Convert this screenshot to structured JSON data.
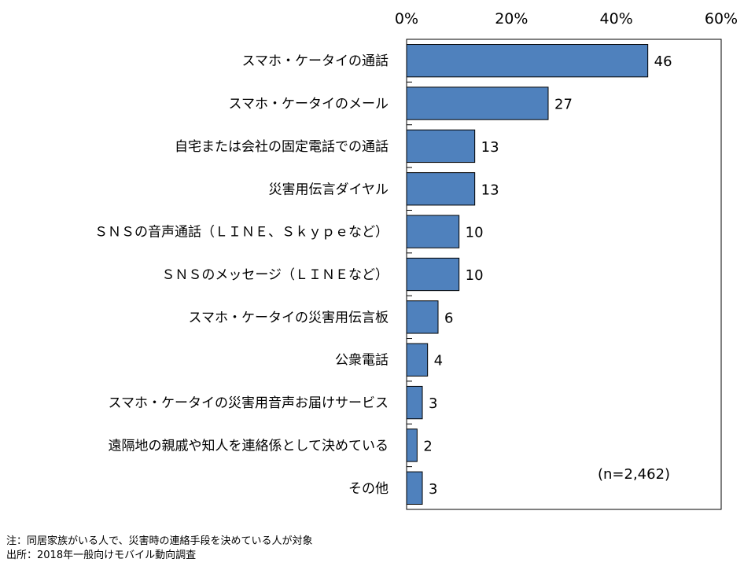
{
  "chart_data": {
    "type": "bar",
    "orientation": "horizontal",
    "categories": [
      "スマホ・ケータイの通話",
      "スマホ・ケータイのメール",
      "自宅または会社の固定電話での通話",
      "災害用伝言ダイヤル",
      "ＳＮＳの音声通話（ＬＩＮＥ、Ｓｋｙｐｅなど）",
      "ＳＮＳのメッセージ（ＬＩＮＥなど）",
      "スマホ・ケータイの災害用伝言板",
      "公衆電話",
      "スマホ・ケータイの災害用音声お届けサービス",
      "遠隔地の親戚や知人を連絡係として決めている",
      "その他"
    ],
    "values": [
      46,
      27,
      13,
      13,
      10,
      10,
      6,
      4,
      3,
      2,
      3
    ],
    "data_labels": [
      "46",
      "27",
      "13",
      "13",
      "10",
      "10",
      "6",
      "4",
      "3",
      "2",
      "3"
    ],
    "xlim": [
      0,
      60
    ],
    "xticks": [
      0,
      20,
      40,
      60
    ],
    "xtick_labels": [
      "0%",
      "20%",
      "40%",
      "60%"
    ],
    "x_axis_position": "top",
    "grid": false,
    "bar_color": "#4F81BD",
    "bar_edge_color": "#000000",
    "annotation": "(n=2,462)"
  },
  "footnotes": {
    "note": "注：同居家族がいる人で、災害時の連絡手段を決めている人が対象",
    "source": "出所：2018年一般向けモバイル動向調査"
  }
}
